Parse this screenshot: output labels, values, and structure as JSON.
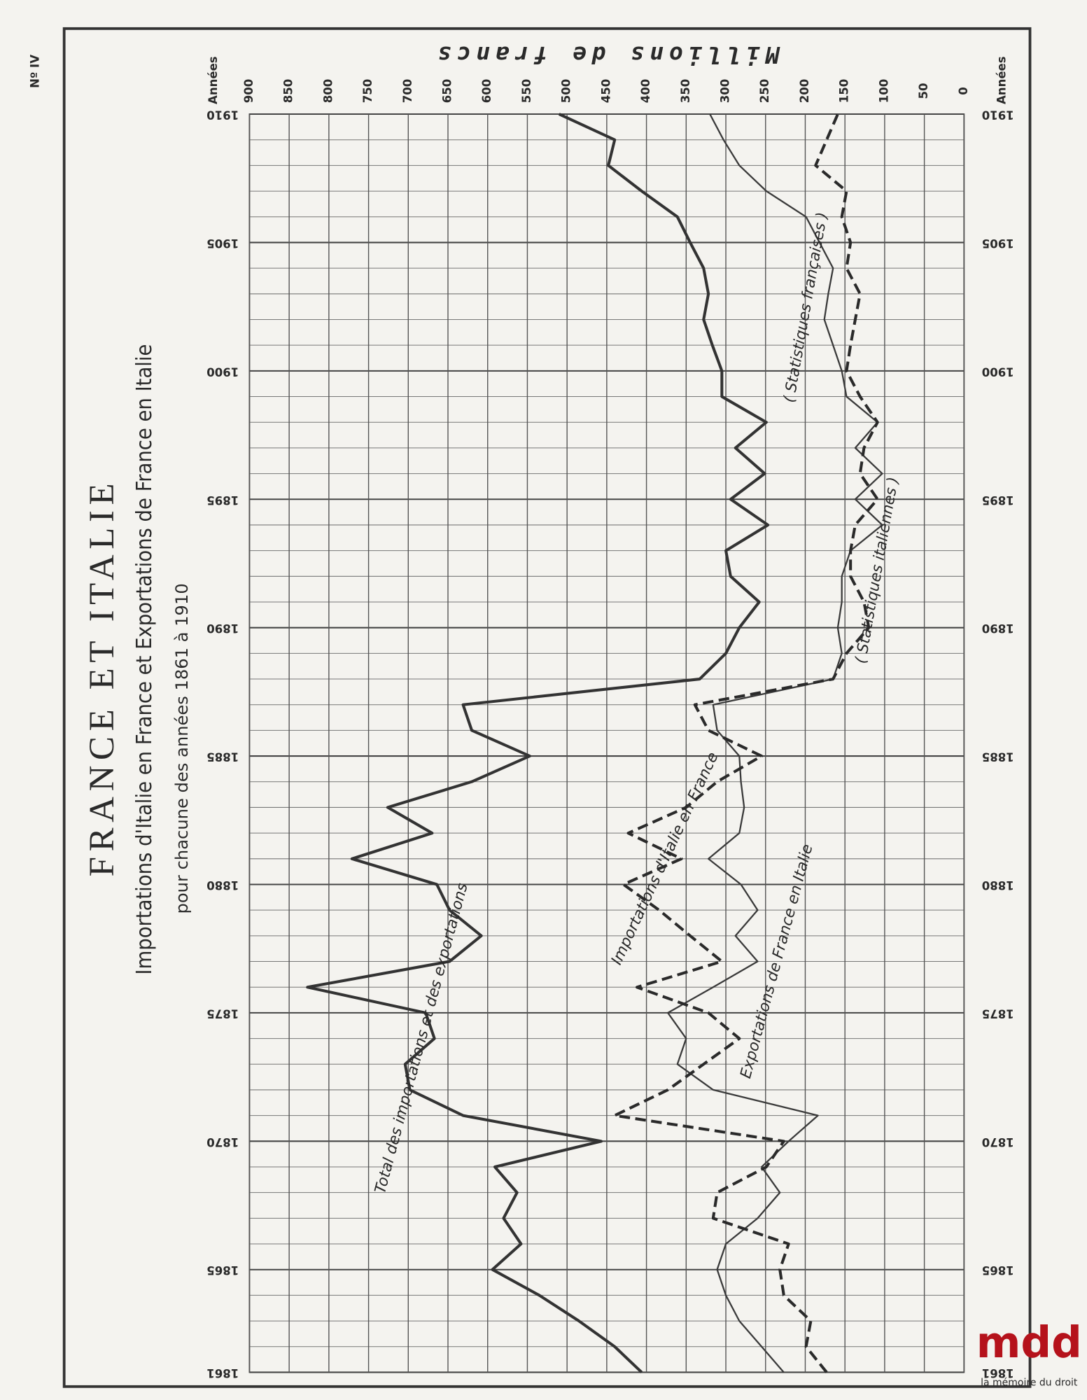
{
  "page_label": "Nº IV",
  "chart_data": {
    "type": "line",
    "title": "FRANCE ET ITALIE",
    "subtitle": "Importations d'Italie en France et Exportations de France en Italie",
    "subtitle2": "pour chacune des années 1861 à 1910",
    "value_axis_label": "Millions de francs",
    "year_axis_label": "Années",
    "x": [
      1861,
      1862,
      1863,
      1864,
      1865,
      1866,
      1867,
      1868,
      1869,
      1870,
      1871,
      1872,
      1873,
      1874,
      1875,
      1876,
      1877,
      1878,
      1879,
      1880,
      1881,
      1882,
      1883,
      1884,
      1885,
      1886,
      1887,
      1888,
      1889,
      1890,
      1891,
      1892,
      1893,
      1894,
      1895,
      1896,
      1897,
      1898,
      1899,
      1900,
      1901,
      1902,
      1903,
      1904,
      1905,
      1906,
      1907,
      1908,
      1909,
      1910
    ],
    "xlim": [
      1861,
      1910
    ],
    "xticks": [
      1861,
      1865,
      1870,
      1875,
      1880,
      1885,
      1890,
      1895,
      1900,
      1905,
      1910
    ],
    "ylim": [
      0,
      900
    ],
    "yticks": [
      0,
      50,
      100,
      150,
      200,
      250,
      300,
      350,
      400,
      450,
      500,
      550,
      600,
      650,
      700,
      750,
      800,
      850,
      900
    ],
    "grid": true,
    "series": [
      {
        "name": "Total des importations et des exportations",
        "color": "#333333",
        "bold": true,
        "dash": false,
        "values": [
          406,
          440,
          485,
          535,
          594,
          558,
          580,
          563,
          591,
          457,
          631,
          698,
          704,
          667,
          678,
          827,
          648,
          608,
          648,
          664,
          771,
          670,
          726,
          620,
          547,
          620,
          631,
          333,
          300,
          283,
          258,
          294,
          300,
          247,
          294,
          251,
          288,
          249,
          305,
          305,
          317,
          328,
          322,
          328,
          345,
          361,
          406,
          448,
          440,
          510
        ]
      },
      {
        "name": "Exportations de France en Italie",
        "color": "#3a3a3a",
        "bold": false,
        "dash": false,
        "values": [
          227,
          255,
          283,
          300,
          311,
          300,
          260,
          232,
          255,
          221,
          184,
          316,
          361,
          350,
          373,
          316,
          260,
          288,
          260,
          281,
          322,
          283,
          277,
          281,
          283,
          311,
          316,
          165,
          154,
          159,
          154,
          154,
          143,
          103,
          137,
          103,
          137,
          109,
          148,
          154,
          165,
          176,
          171,
          165,
          182,
          199,
          249,
          283,
          303,
          320
        ]
      },
      {
        "name": "Importations d'Italie en France",
        "color": "#2a2a2a",
        "bold": true,
        "dash": true,
        "values": [
          173,
          199,
          193,
          227,
          232,
          221,
          316,
          311,
          249,
          227,
          440,
          373,
          328,
          283,
          322,
          412,
          305,
          345,
          384,
          429,
          356,
          423,
          350,
          311,
          255,
          322,
          339,
          165,
          148,
          120,
          126,
          143,
          143,
          137,
          109,
          131,
          126,
          109,
          131,
          148,
          143,
          137,
          131,
          148,
          143,
          154,
          148,
          187,
          173,
          159
        ]
      }
    ],
    "annotations": [
      "( Statistiques françaises )",
      "( Statistiques italiennes )"
    ]
  },
  "watermark": {
    "logo": "mdd",
    "caption": "la mémoire du droit"
  }
}
